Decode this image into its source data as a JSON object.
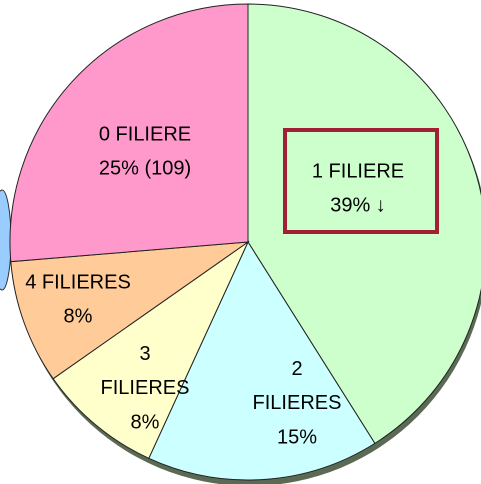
{
  "chart_data": {
    "type": "pie",
    "categories": [
      "1 FILIERE",
      "2 FILIERES",
      "3 FILIERES",
      "4 FILIERES",
      "0 FILIERE"
    ],
    "values": [
      39,
      15,
      8,
      8,
      25
    ],
    "value_labels": [
      "39% ↓",
      "15%",
      "8%",
      "8%",
      "25% (109)"
    ],
    "colors": [
      "#ccffcc",
      "#ccffff",
      "#ffffcc",
      "#ffcc99",
      "#ff99cc"
    ]
  }
}
